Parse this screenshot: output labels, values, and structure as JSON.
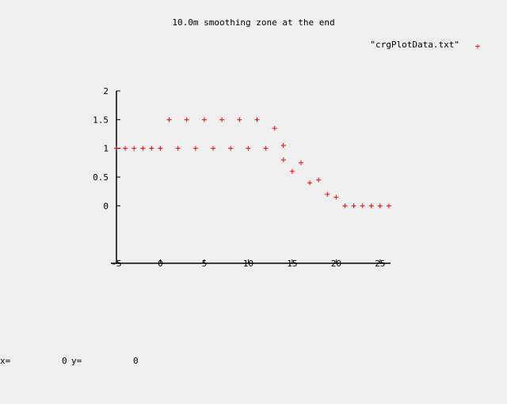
{
  "chart_data": {
    "type": "scatter",
    "title": "10.0m smoothing zone at the end",
    "legend": {
      "label": "\"crgPlotData.txt\"",
      "placement": "top-right",
      "marker": "+"
    },
    "series": [
      {
        "name": "\"crgPlotData.txt\"",
        "color": "#ff0000",
        "points": [
          [
            -5,
            1
          ],
          [
            -4,
            1
          ],
          [
            -3,
            1
          ],
          [
            -2,
            1
          ],
          [
            -1,
            1
          ],
          [
            0,
            1
          ],
          [
            1,
            1.5
          ],
          [
            2,
            1
          ],
          [
            3,
            1.5
          ],
          [
            4,
            1
          ],
          [
            5,
            1.5
          ],
          [
            6,
            1
          ],
          [
            7,
            1.5
          ],
          [
            8,
            1
          ],
          [
            9,
            1.5
          ],
          [
            10,
            1
          ],
          [
            11,
            1.5
          ],
          [
            12,
            1
          ],
          [
            13,
            1.35
          ],
          [
            14,
            1.05
          ],
          [
            14,
            0.8
          ],
          [
            15,
            0.6
          ],
          [
            16,
            0.75
          ],
          [
            17,
            0.4
          ],
          [
            18,
            0.45
          ],
          [
            19,
            0.2
          ],
          [
            20,
            0.15
          ],
          [
            21,
            0
          ],
          [
            22,
            0
          ],
          [
            23,
            0
          ],
          [
            24,
            0
          ],
          [
            25,
            0
          ],
          [
            26,
            0
          ]
        ]
      }
    ],
    "xlim": [
      -5,
      27
    ],
    "ylim": [
      -1,
      2
    ],
    "x_ticks": [
      -5,
      0,
      5,
      10,
      15,
      20,
      25
    ],
    "x_tick_labels": [
      "-5",
      "0",
      "5",
      "10",
      "15",
      "20",
      "25"
    ],
    "y_ticks": [
      0,
      0.5,
      1,
      1.5,
      2
    ],
    "y_tick_labels": [
      "0",
      "0.5",
      "1",
      "1.5",
      "2"
    ],
    "grid": false,
    "xlabel": "",
    "ylabel": ""
  },
  "status": {
    "x_label": "x=",
    "x_value": "0",
    "y_label": "y=",
    "y_value": "0"
  }
}
